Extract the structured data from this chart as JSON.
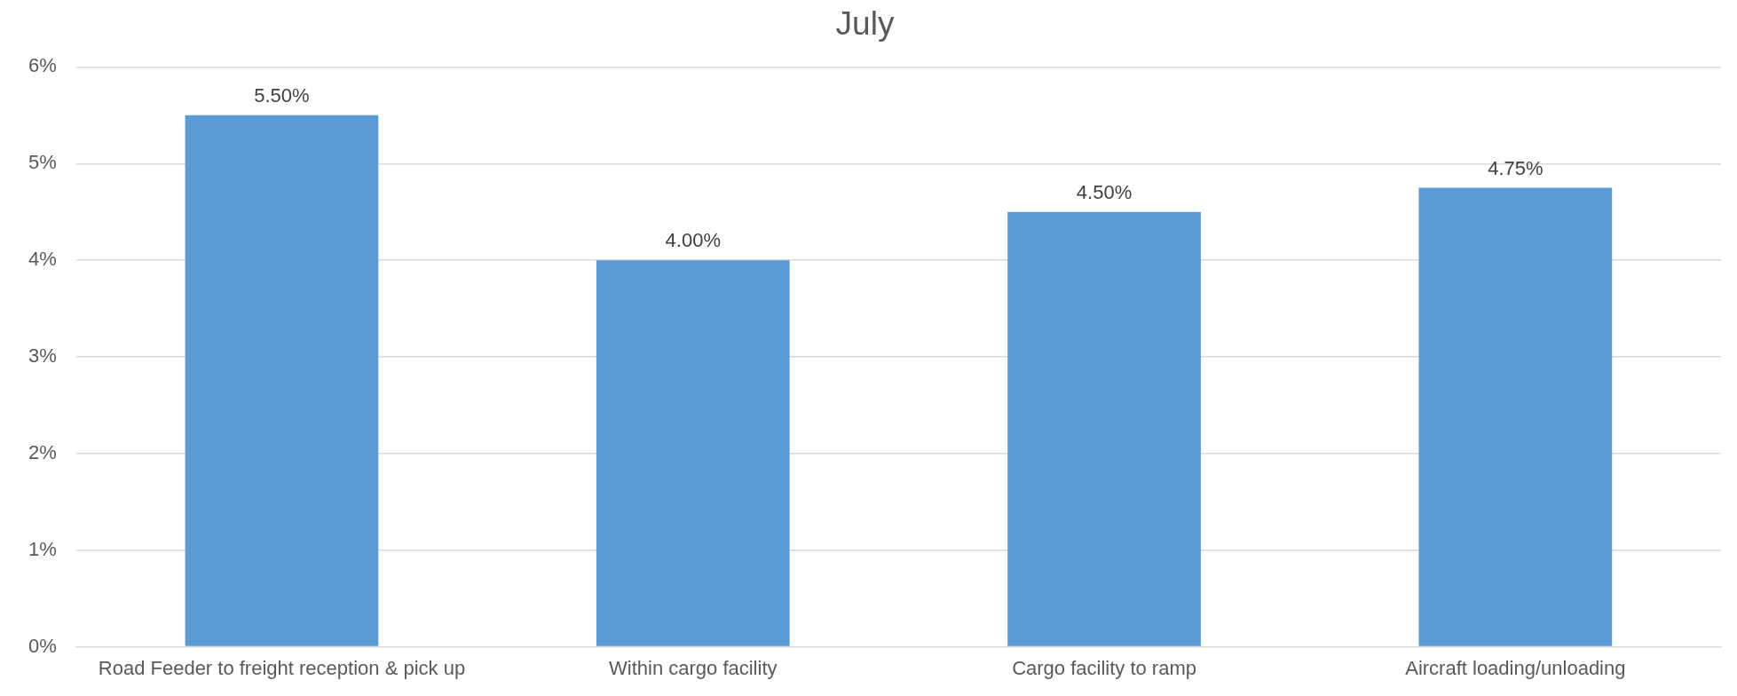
{
  "chart_data": {
    "type": "bar",
    "title": "July",
    "categories": [
      "Road Feeder to freight reception & pick up",
      "Within cargo facility",
      "Cargo facility to ramp",
      "Aircraft loading/unloading"
    ],
    "values": [
      5.5,
      4,
      4.5,
      4.75
    ],
    "color": "#5b9bd5",
    "value_labels": [
      "5.50%",
      "4.00%",
      "4.50%",
      "4.75%"
    ],
    "ylim": [
      0,
      6
    ],
    "yticks": [
      {
        "value": 0,
        "label": "0%"
      },
      {
        "value": 1,
        "label": "1%"
      },
      {
        "value": 2,
        "label": "2%"
      },
      {
        "value": 3,
        "label": "3%"
      },
      {
        "value": 4,
        "label": "4%"
      },
      {
        "value": 5,
        "label": "5%"
      },
      {
        "value": 6,
        "label": "6%"
      }
    ],
    "grid": "y",
    "legend": false
  }
}
